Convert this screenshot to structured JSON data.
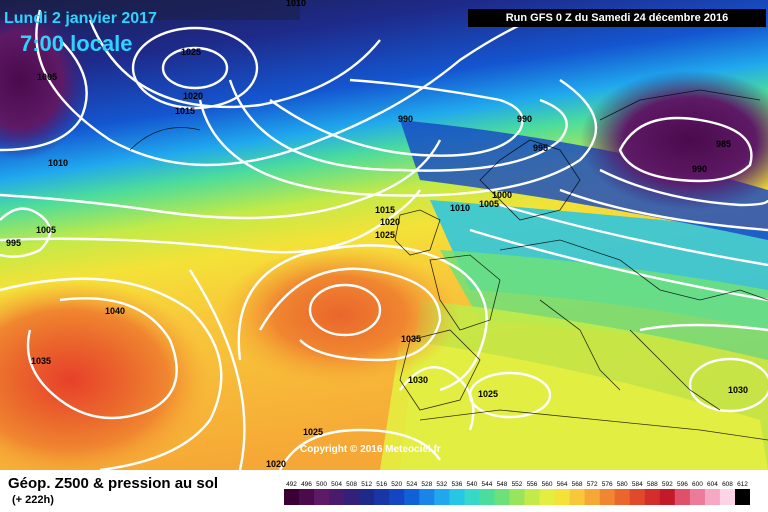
{
  "header": {
    "date_label": "Lundi 2 janvier 2017",
    "time_label": "7:00 locale",
    "run_label": "Run GFS 0 Z du Samedi 24 décembre 2016"
  },
  "copyright": "Copyright © 2016 Meteociel.fr",
  "legend": {
    "title": "Géop. Z500 & pression au sol",
    "subtitle": "(+ 222h)",
    "ticks": [
      "492",
      "496",
      "500",
      "504",
      "508",
      "512",
      "516",
      "520",
      "524",
      "528",
      "532",
      "536",
      "540",
      "544",
      "548",
      "552",
      "556",
      "560",
      "564",
      "568",
      "572",
      "576",
      "580",
      "584",
      "588",
      "592",
      "596",
      "600",
      "604",
      "608",
      "612"
    ],
    "colors": [
      "#3a0036",
      "#4a0a4c",
      "#5e1a66",
      "#4a1a6e",
      "#33207a",
      "#1e2a8a",
      "#1836a8",
      "#1446c4",
      "#1060d8",
      "#1a84e8",
      "#20a8ee",
      "#26c6e6",
      "#36d8c8",
      "#4cdc9c",
      "#6ee07a",
      "#98e45c",
      "#c2ea48",
      "#e4ee40",
      "#f4e238",
      "#f8c83a",
      "#f6a836",
      "#f08630",
      "#ea662c",
      "#e04a2a",
      "#d42e2a",
      "#c41a28",
      "#e0506a",
      "#ec7a98",
      "#f4a8c4",
      "#fcd4e6",
      "#000000"
    ]
  },
  "isobars": [
    "1010",
    "1025",
    "1005",
    "1020",
    "1015",
    "1010",
    "995",
    "1005",
    "990",
    "990",
    "995",
    "985",
    "990",
    "1000",
    "1005",
    "1010",
    "1015",
    "1020",
    "1025",
    "1040",
    "1035",
    "1035",
    "1030",
    "1025",
    "1030",
    "1025",
    "1020"
  ],
  "colors": {
    "accent_text": "#2fd3ff",
    "contour": "#ffffff",
    "coast": "#000000"
  }
}
